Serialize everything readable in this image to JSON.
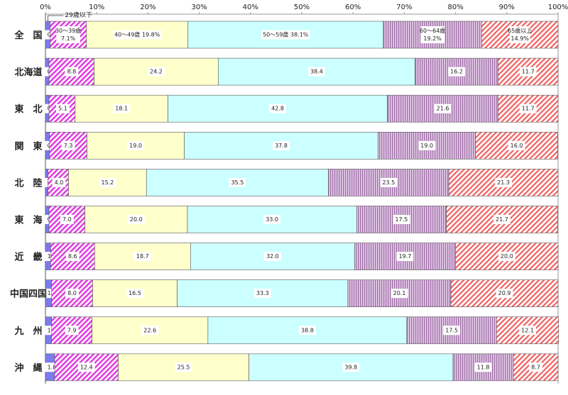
{
  "chart_data": {
    "type": "bar",
    "orientation": "horizontal",
    "stacked": true,
    "normalized": true,
    "xlim": [
      0,
      100
    ],
    "x_ticks": [
      "0%",
      "10%",
      "20%",
      "30%",
      "40%",
      "50%",
      "60%",
      "70%",
      "80%",
      "90%",
      "100%"
    ],
    "grid": false,
    "categories": [
      "全　国",
      "北海道",
      "東　北",
      "関　東",
      "北　陸",
      "東　海",
      "近　畿",
      "中国四国",
      "九　州",
      "沖　縄"
    ],
    "series": [
      {
        "name": "29歳以下",
        "color": "#7b7bef",
        "pattern": "solid",
        "values": [
          0.9,
          0.7,
          0.7,
          0.8,
          0.5,
          0.7,
          1.0,
          1.2,
          1.2,
          1.8
        ]
      },
      {
        "name": "30～39歳",
        "color": "#e040e0",
        "pattern": "diagonal-hatch",
        "values": [
          7.1,
          8.8,
          5.1,
          7.3,
          4.0,
          7.0,
          8.6,
          8.0,
          7.9,
          12.4
        ]
      },
      {
        "name": "40～49歳",
        "color": "#ffffcc",
        "pattern": "solid",
        "values": [
          19.8,
          24.2,
          18.1,
          19.0,
          15.2,
          20.0,
          18.7,
          16.5,
          22.6,
          25.5
        ]
      },
      {
        "name": "50～59歳",
        "color": "#ccffff",
        "pattern": "solid",
        "values": [
          38.1,
          38.4,
          42.8,
          37.8,
          35.5,
          33.0,
          32.0,
          33.3,
          38.8,
          39.8
        ]
      },
      {
        "name": "60～64歳",
        "color": "#b080b8",
        "pattern": "dotted",
        "values": [
          19.2,
          16.2,
          21.6,
          19.0,
          23.5,
          17.5,
          19.7,
          20.1,
          17.5,
          11.8
        ]
      },
      {
        "name": "65歳以上",
        "color": "#f06060",
        "pattern": "diagonal-hatch",
        "values": [
          14.9,
          11.7,
          11.7,
          16.0,
          21.3,
          21.7,
          20.0,
          20.9,
          12.1,
          8.7
        ]
      }
    ],
    "first_row_labels": [
      "0.9",
      "30～39歳\n7.1%",
      "40～49歳  19.8%",
      "50～59歳  38.1%",
      "60～64歳\n19.2%",
      "65歳以上\n14.9%"
    ],
    "annotation": "29歳以下"
  }
}
